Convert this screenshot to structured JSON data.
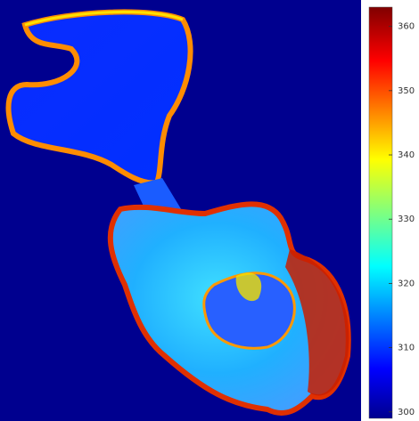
{
  "colorbar": {
    "lim": [
      299,
      363
    ],
    "ticks": [
      300,
      310,
      320,
      330,
      340,
      350,
      360
    ]
  }
}
